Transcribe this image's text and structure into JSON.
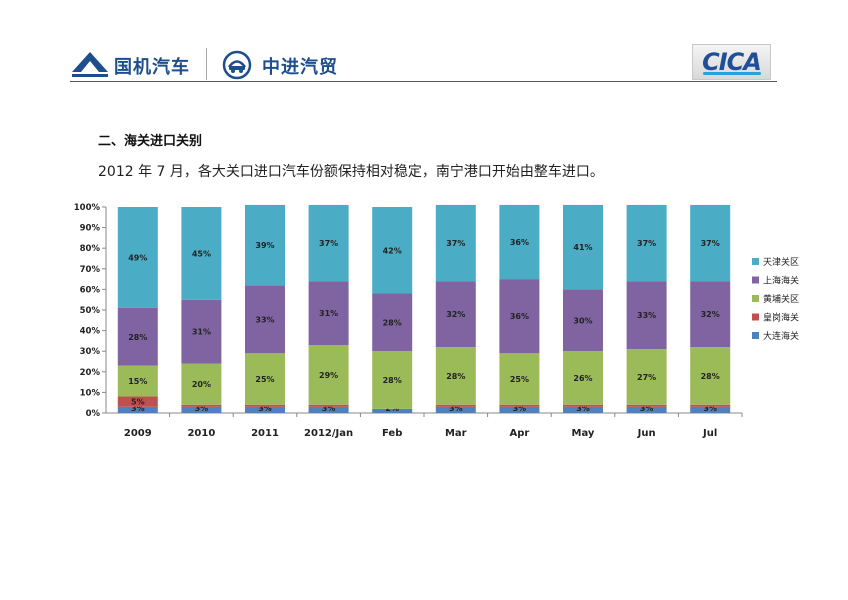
{
  "header": {
    "brand1": "国机汽车",
    "brand2": "中进汽贸",
    "logo_right": "CICA"
  },
  "section_title": "二、海关进口关别",
  "subtitle": "2012 年 7 月，各大关口进口汽车份额保持相对稳定，南宁港口开始由整车进口。",
  "colors": {
    "dalian": "#4f81bd",
    "huanggang": "#c0504d",
    "huangpu": "#9bbb59",
    "shanghai": "#8064a2",
    "tianjin": "#4bacc6",
    "brand_blue": "#1f4e8c"
  },
  "chart_data": {
    "type": "bar",
    "stacked": true,
    "percent": true,
    "categories": [
      "2009",
      "2010",
      "2011",
      "2012/Jan",
      "Feb",
      "Mar",
      "Apr",
      "May",
      "Jun",
      "Jul"
    ],
    "y_ticks": [
      "0%",
      "10%",
      "20%",
      "30%",
      "40%",
      "50%",
      "60%",
      "70%",
      "80%",
      "90%",
      "100%"
    ],
    "ylim": [
      0,
      100
    ],
    "legend_position": "right",
    "series": [
      {
        "name": "大连海关",
        "color": "#4f81bd",
        "values": [
          3,
          3,
          3,
          3,
          2,
          3,
          3,
          3,
          3,
          3
        ]
      },
      {
        "name": "皇岗海关",
        "color": "#c0504d",
        "values": [
          5,
          1,
          1,
          1,
          0,
          1,
          1,
          1,
          1,
          1
        ]
      },
      {
        "name": "黄埔关区",
        "color": "#9bbb59",
        "values": [
          15,
          20,
          25,
          29,
          28,
          28,
          25,
          26,
          27,
          28
        ]
      },
      {
        "name": "上海海关",
        "color": "#8064a2",
        "values": [
          28,
          31,
          33,
          31,
          28,
          32,
          36,
          30,
          33,
          32
        ]
      },
      {
        "name": "天津关区",
        "color": "#4bacc6",
        "values": [
          49,
          45,
          39,
          37,
          42,
          37,
          36,
          41,
          37,
          37
        ]
      }
    ]
  }
}
